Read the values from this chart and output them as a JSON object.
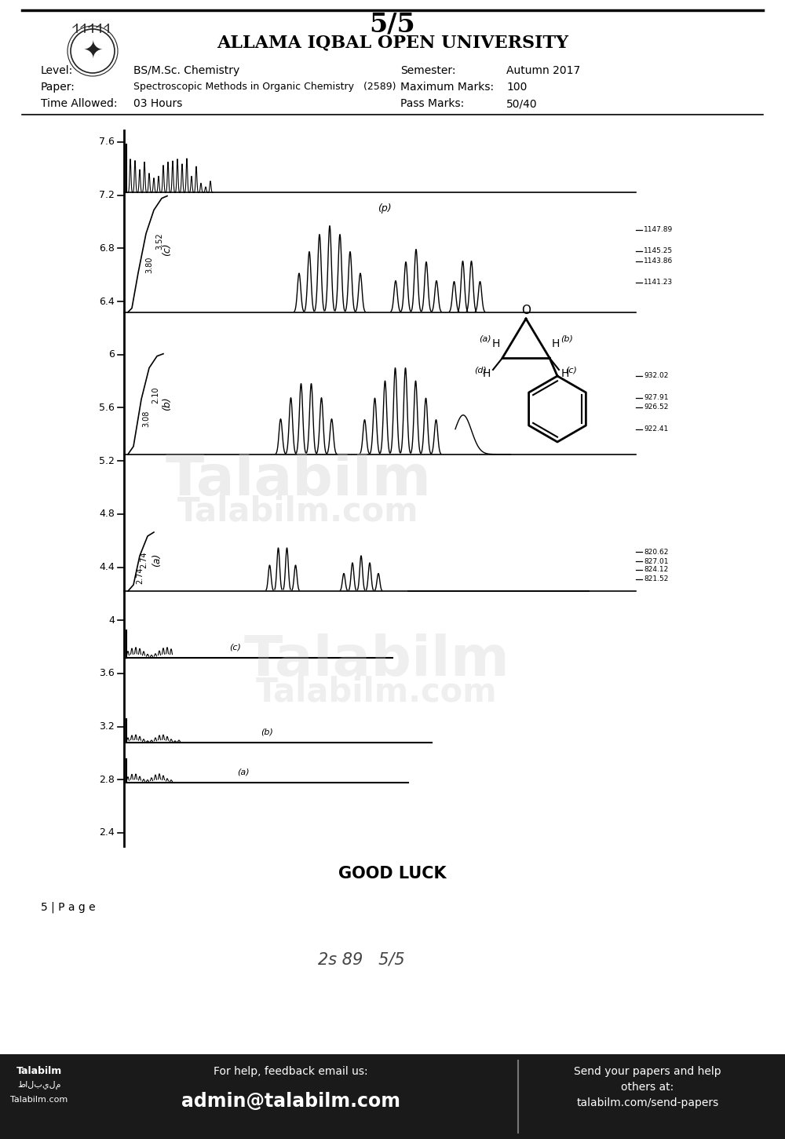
{
  "page_header": "5/5",
  "university": "ALLAMA IQBAL OPEN UNIVERSITY",
  "level_label": "Level:",
  "level_value": "BS/M.Sc. Chemistry",
  "paper_label": "Paper:",
  "paper_value": "Spectroscopic Methods in Organic Chemistry   (2589)",
  "time_label": "Time Allowed:",
  "time_value": "03 Hours",
  "semester_label": "Semester:",
  "semester_value": "Autumn 2017",
  "maxmarks_label": "Maximum Marks:",
  "maxmarks_value": "100",
  "passmarks_label": "Pass Marks:",
  "passmarks_value": "50/40",
  "footer_left1": "Talabilm",
  "footer_left2": "طالبيلم",
  "footer_left3": "Talabilm.com",
  "footer_mid1": "For help, feedback email us:",
  "footer_mid2": "admin@talabilm.com",
  "footer_right1": "Send your papers and help",
  "footer_right2": "others at:",
  "footer_right3": "talabilm.com/send-papers",
  "page_footer": "5 | P a g e",
  "good_luck": "GOOD LUCK",
  "handwritten": "2s 89   5/5",
  "watermark1": "Talabilm",
  "watermark2": "Talabilm.com",
  "background_color": "#ffffff",
  "footer_bg": "#1a1a1a",
  "footer_text": "#ffffff",
  "border_color": "#000000",
  "annotations_c": [
    "1147.89",
    "1145.25",
    "1143.86",
    "1141.23"
  ],
  "annotations_b": [
    "932.02",
    "927.91",
    "926.52",
    "922.41"
  ],
  "annotations_a": [
    "820.62",
    "827.01",
    "824.12",
    "821.52"
  ],
  "yaxis_ticks": [
    7.6,
    7.2,
    6.8,
    6.4,
    6.0,
    5.6,
    5.2,
    4.8,
    4.4,
    4.0,
    3.6,
    3.2,
    2.8,
    2.4
  ]
}
